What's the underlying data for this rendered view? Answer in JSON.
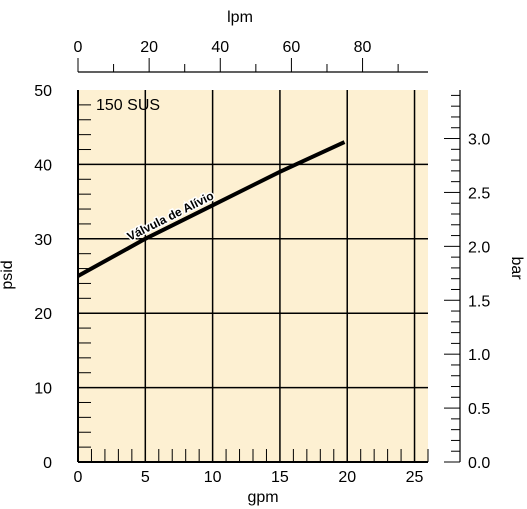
{
  "chart_data": {
    "type": "line",
    "title": "",
    "xlabel": "gpm",
    "ylabel": "psid",
    "x2label": "lpm",
    "y2label": "bar",
    "xlim": [
      0,
      26
    ],
    "ylim": [
      0,
      50
    ],
    "x2lim": [
      0,
      98.4
    ],
    "y2lim": [
      0,
      3.45
    ],
    "x_ticks": [
      "0",
      "5",
      "10",
      "15",
      "20",
      "25"
    ],
    "y_ticks": [
      "0",
      "10",
      "20",
      "30",
      "40",
      "50"
    ],
    "x2_ticks": [
      "0",
      "20",
      "40",
      "60",
      "80"
    ],
    "y2_ticks": [
      "0.0",
      "0.5",
      "1.0",
      "1.5",
      "2.0",
      "2.5",
      "3.0"
    ],
    "grid": true,
    "plot_background": "#fdf0d2",
    "line_color": "#000000",
    "annotations": {
      "corner_label": "150 SUS",
      "line_label": "Válvula de Alívio"
    },
    "series": [
      {
        "name": "",
        "x": [
          0,
          5,
          10,
          15,
          19.8
        ],
        "y": [
          25,
          30,
          34.5,
          39,
          43
        ]
      }
    ]
  }
}
